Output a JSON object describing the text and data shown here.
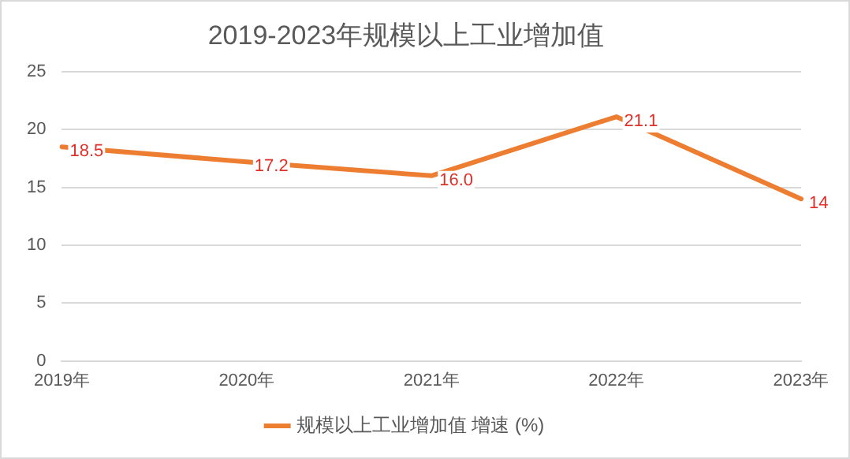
{
  "chart_data": {
    "type": "line",
    "title": "2019-2023年规模以上工业增加值",
    "categories": [
      "2019年",
      "2020年",
      "2021年",
      "2022年",
      "2023年"
    ],
    "series": [
      {
        "name": "规模以上工业增加值 增速 (%)",
        "color": "#ed7d31",
        "values": [
          18.5,
          17.2,
          16.0,
          21.1,
          14
        ],
        "value_labels": [
          "18.5",
          "17.2",
          "16.0",
          "21.1",
          "14"
        ]
      }
    ],
    "ylim": [
      0,
      25
    ],
    "yticks": [
      0,
      5,
      10,
      15,
      20,
      25
    ],
    "grid": "y",
    "legend": "bottom",
    "marker": "none",
    "line_style": "solid"
  }
}
